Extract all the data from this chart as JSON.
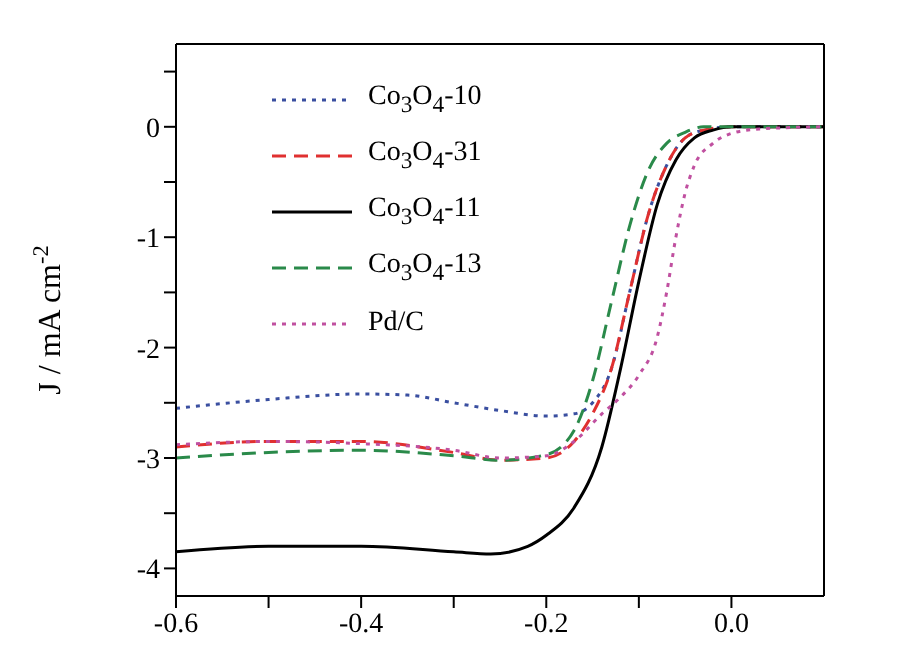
{
  "chart_data": {
    "type": "line",
    "ylabel": "J / mA cm$^{-2}$",
    "xlim": [
      -0.6,
      0.1
    ],
    "ylim": [
      -4.25,
      0.75
    ],
    "xticks": [
      -0.6,
      {
        "value": -0.5,
        "label": null
      },
      -0.4,
      {
        "value": -0.3,
        "label": null
      },
      -0.2,
      {
        "value": -0.1,
        "label": null
      },
      {
        "value": 0,
        "label": "0.0"
      }
    ],
    "yticks": [
      -4,
      {
        "value": -3.5,
        "label": null
      },
      -3,
      {
        "value": -2.5,
        "label": null
      },
      -2,
      {
        "value": -1.5,
        "label": null
      },
      -1,
      {
        "value": -0.5,
        "label": null
      },
      0,
      {
        "value": 0.5,
        "label": null
      }
    ],
    "legend": "top left",
    "marker": "none",
    "series": [
      {
        "name": "Co$_{3}$O$_{4}$-10",
        "color": "#3a4fa0",
        "line_style": "dotted",
        "x": [
          -0.6,
          -0.5,
          -0.4,
          -0.35,
          -0.3,
          -0.25,
          -0.2,
          -0.17,
          -0.15,
          -0.13,
          -0.11,
          -0.09,
          -0.07,
          -0.05,
          -0.03,
          0,
          0.1
        ],
        "values": [
          -2.55,
          -2.47,
          -2.42,
          -2.43,
          -2.5,
          -2.57,
          -2.62,
          -2.6,
          -2.5,
          -2.2,
          -1.5,
          -0.8,
          -0.35,
          -0.1,
          -0.03,
          0,
          0
        ]
      },
      {
        "name": "Co$_{3}$O$_{4}$-31",
        "color": "#e03030",
        "line_style": "dashed",
        "x": [
          -0.6,
          -0.5,
          -0.4,
          -0.3,
          -0.25,
          -0.2,
          -0.17,
          -0.15,
          -0.13,
          -0.11,
          -0.09,
          -0.07,
          -0.05,
          -0.03,
          0,
          0.1
        ],
        "values": [
          -2.9,
          -2.85,
          -2.85,
          -2.95,
          -3.02,
          -3.0,
          -2.85,
          -2.6,
          -2.2,
          -1.5,
          -0.8,
          -0.35,
          -0.1,
          -0.03,
          0,
          0
        ]
      },
      {
        "name": "Co$_{3}$O$_{4}$-11",
        "color": "#000000",
        "line_style": "solid",
        "x": [
          -0.6,
          -0.5,
          -0.4,
          -0.3,
          -0.26,
          -0.22,
          -0.2,
          -0.17,
          -0.14,
          -0.12,
          -0.1,
          -0.08,
          -0.06,
          -0.04,
          -0.02,
          0,
          0.1
        ],
        "values": [
          -3.85,
          -3.8,
          -3.8,
          -3.85,
          -3.87,
          -3.8,
          -3.7,
          -3.45,
          -2.9,
          -2.2,
          -1.4,
          -0.7,
          -0.3,
          -0.1,
          -0.03,
          0,
          0
        ]
      },
      {
        "name": "Co$_{3}$O$_{4}$-13",
        "color": "#2a8a4a",
        "line_style": "dashed",
        "x": [
          -0.6,
          -0.5,
          -0.4,
          -0.3,
          -0.25,
          -0.2,
          -0.17,
          -0.15,
          -0.13,
          -0.11,
          -0.09,
          -0.07,
          -0.05,
          -0.03,
          0.1
        ],
        "values": [
          -3.0,
          -2.95,
          -2.93,
          -2.98,
          -3.02,
          -2.97,
          -2.75,
          -2.3,
          -1.6,
          -0.9,
          -0.4,
          -0.15,
          -0.05,
          0,
          0
        ]
      },
      {
        "name": "Pd/C",
        "color": "#c050a0",
        "line_style": "dotted",
        "x": [
          -0.6,
          -0.5,
          -0.4,
          -0.3,
          -0.25,
          -0.2,
          -0.17,
          -0.14,
          -0.12,
          -0.1,
          -0.08,
          -0.07,
          -0.06,
          -0.05,
          -0.04,
          -0.02,
          0,
          0.03,
          0.1
        ],
        "values": [
          -2.88,
          -2.85,
          -2.87,
          -2.93,
          -3.0,
          -2.98,
          -2.85,
          -2.6,
          -2.45,
          -2.25,
          -1.9,
          -1.5,
          -1.0,
          -0.6,
          -0.35,
          -0.15,
          -0.06,
          -0.02,
          0
        ]
      }
    ]
  }
}
